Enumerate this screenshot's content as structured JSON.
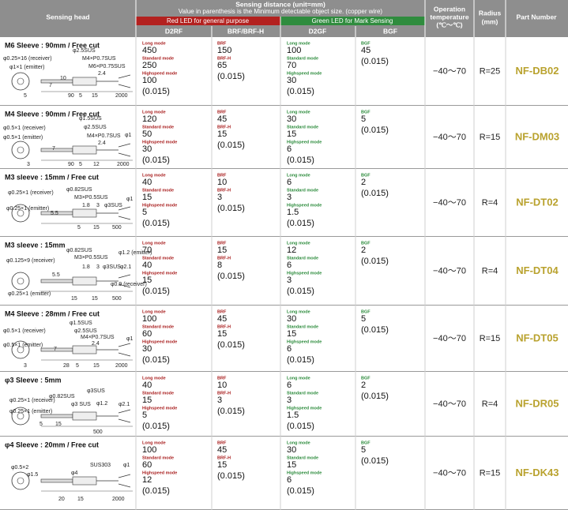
{
  "header": {
    "sensing_head": "Sensing head",
    "sensing_distance": "Sensing distance (unit=mm)",
    "note": "Value in parenthesis is the Minimum detectable object size. (copper wire)",
    "red_led": "Red LED for general purpose",
    "green_led": "Green LED for Mark Sensing",
    "d2rf": "D2RF",
    "brf": "BRF/BRF-H",
    "d2gf": "D2GF",
    "bgf": "BGF",
    "operation_temperature": [
      "Operation",
      "temperature",
      "(℃〜℃)"
    ],
    "radius": [
      "Radius",
      "(mm)"
    ],
    "part_number": "Part Number"
  },
  "rows": [
    {
      "title": "M6 Sleeve : 90mm / Free cut",
      "labels": [
        "φ0.25×16 (receiver)",
        "φ1×1 (emitter)",
        "φ2.5SUS",
        "M4×P0.7SUS",
        "M6×P0.75SUS",
        "2.4",
        "10",
        "7",
        "5",
        "90",
        "5",
        "15",
        "2000"
      ],
      "d2rf": {
        "modes": [
          {
            "label": "Long mode",
            "value": "450"
          },
          {
            "label": "Standard mode",
            "value": "250"
          },
          {
            "label": "Highspeed mode",
            "value": "100"
          }
        ],
        "min": "(0.015)"
      },
      "brf": {
        "modes": [
          {
            "label": "BRF",
            "value": "150"
          },
          {
            "label": "BRF-H",
            "value": "65"
          }
        ],
        "min": "(0.015)"
      },
      "d2gf": {
        "modes": [
          {
            "label": "Long mode",
            "value": "100"
          },
          {
            "label": "Standard mode",
            "value": "70"
          },
          {
            "label": "Highspeed mode",
            "value": "30"
          }
        ],
        "min": "(0.015)"
      },
      "bgf": {
        "modes": [
          {
            "label": "BGF",
            "value": "45"
          }
        ],
        "min": "(0.015)"
      },
      "temperature": "−40〜70",
      "radius": "R=25",
      "part": "NF-DB02"
    },
    {
      "title": "M4 Sleeve : 90mm / Free cut",
      "labels": [
        "φ0.5×1 (receiver)",
        "φ0.5×1 (emitter)",
        "φ1.5SUS",
        "φ2.5SUS",
        "M4×P0.7SUS",
        "2.4",
        "φ1",
        "7",
        "3",
        "90",
        "5",
        "12",
        "2000"
      ],
      "d2rf": {
        "modes": [
          {
            "label": "Long mode",
            "value": "120"
          },
          {
            "label": "Standard mode",
            "value": "50"
          },
          {
            "label": "Highspeed mode",
            "value": "30"
          }
        ],
        "min": "(0.015)"
      },
      "brf": {
        "modes": [
          {
            "label": "BRF",
            "value": "45"
          },
          {
            "label": "BRF-H",
            "value": "15"
          }
        ],
        "min": "(0.015)"
      },
      "d2gf": {
        "modes": [
          {
            "label": "Long mode",
            "value": "30"
          },
          {
            "label": "Standard mode",
            "value": "15"
          },
          {
            "label": "Highspeed mode",
            "value": "6"
          }
        ],
        "min": "(0.015)"
      },
      "bgf": {
        "modes": [
          {
            "label": "BGF",
            "value": "5"
          }
        ],
        "min": "(0.015)"
      },
      "temperature": "−40〜70",
      "radius": "R=15",
      "part": "NF-DM03"
    },
    {
      "title": "M3 sleeve : 15mm / Free cut",
      "labels": [
        "φ0.25×1 (receiver)",
        "φ0.25×1 (emitter)",
        "φ0.82SUS",
        "M3×P0.5SUS",
        "5.5",
        "1.8",
        "3",
        "φ3SUS",
        "φ1",
        "5",
        "15",
        "500"
      ],
      "d2rf": {
        "modes": [
          {
            "label": "Long mode",
            "value": "40"
          },
          {
            "label": "Standard mode",
            "value": "15"
          },
          {
            "label": "Highspeed mode",
            "value": "5"
          }
        ],
        "min": "(0.015)"
      },
      "brf": {
        "modes": [
          {
            "label": "BRF",
            "value": "10"
          },
          {
            "label": "BRF-H",
            "value": "3"
          }
        ],
        "min": "(0.015)"
      },
      "d2gf": {
        "modes": [
          {
            "label": "Long mode",
            "value": "6"
          },
          {
            "label": "Standard mode",
            "value": "3"
          },
          {
            "label": "Highspeed mode",
            "value": "1.5"
          }
        ],
        "min": "(0.015)"
      },
      "bgf": {
        "modes": [
          {
            "label": "BGF",
            "value": "2"
          }
        ],
        "min": "(0.015)"
      },
      "temperature": "−40〜70",
      "radius": "R=4",
      "part": "NF-DT02"
    },
    {
      "title": "M3 sleeve : 15mm",
      "labels": [
        "φ0.125×9 (receiver)",
        "φ0.25×1 (emitter)",
        "φ0.82SUS",
        "M3×P0.5SUS",
        "1.8",
        "3",
        "φ3SUS",
        "φ1.2 (emitter)",
        "φ2.1",
        "5.5",
        "φ0.9 (receiver)",
        "15",
        "15",
        "500"
      ],
      "d2rf": {
        "modes": [
          {
            "label": "Long mode",
            "value": "70"
          },
          {
            "label": "Standard mode",
            "value": "40"
          },
          {
            "label": "Highspeed mode",
            "value": "15"
          }
        ],
        "min": "(0.015)"
      },
      "brf": {
        "modes": [
          {
            "label": "BRF",
            "value": "15"
          },
          {
            "label": "BRF-H",
            "value": "8"
          }
        ],
        "min": "(0.015)"
      },
      "d2gf": {
        "modes": [
          {
            "label": "Long mode",
            "value": "12"
          },
          {
            "label": "Standard mode",
            "value": "6"
          },
          {
            "label": "Highspeed mode",
            "value": "3"
          }
        ],
        "min": "(0.015)"
      },
      "bgf": {
        "modes": [
          {
            "label": "BGF",
            "value": "2"
          }
        ],
        "min": "(0.015)"
      },
      "temperature": "−40〜70",
      "radius": "R=4",
      "part": "NF-DT04"
    },
    {
      "title": "M4 Sleeve : 28mm / Free cut",
      "labels": [
        "φ0.5×1 (receiver)",
        "φ0.5×1 (emitter)",
        "φ1.5SUS",
        "φ2.5SUS",
        "M4×P0.7SUS",
        "2.4",
        "φ1",
        "7",
        "3",
        "28",
        "5",
        "15",
        "2000"
      ],
      "d2rf": {
        "modes": [
          {
            "label": "Long mode",
            "value": "100"
          },
          {
            "label": "Standard mode",
            "value": "60"
          },
          {
            "label": "Highspeed mode",
            "value": "30"
          }
        ],
        "min": "(0.015)"
      },
      "brf": {
        "modes": [
          {
            "label": "BRF",
            "value": "45"
          },
          {
            "label": "BRF-H",
            "value": "15"
          }
        ],
        "min": "(0.015)"
      },
      "d2gf": {
        "modes": [
          {
            "label": "Long mode",
            "value": "30"
          },
          {
            "label": "Standard mode",
            "value": "15"
          },
          {
            "label": "Highspeed mode",
            "value": "6"
          }
        ],
        "min": "(0.015)"
      },
      "bgf": {
        "modes": [
          {
            "label": "BGF",
            "value": "5"
          }
        ],
        "min": "(0.015)"
      },
      "temperature": "−40〜70",
      "radius": "R=15",
      "part": "NF-DT05"
    },
    {
      "title": "φ3 Sleeve : 5mm",
      "labels": [
        "φ0.25×1 (receiver)",
        "φ0.25×1 (emitter)",
        "φ0.82SUS",
        "φ3SUS",
        "φ3 SUS",
        "φ1.2",
        "φ2.1",
        "5",
        "15",
        "500"
      ],
      "d2rf": {
        "modes": [
          {
            "label": "Long mode",
            "value": "40"
          },
          {
            "label": "Standard mode",
            "value": "15"
          },
          {
            "label": "Highspeed mode",
            "value": "5"
          }
        ],
        "min": "(0.015)"
      },
      "brf": {
        "modes": [
          {
            "label": "BRF",
            "value": "10"
          },
          {
            "label": "BRF-H",
            "value": "3"
          }
        ],
        "min": "(0.015)"
      },
      "d2gf": {
        "modes": [
          {
            "label": "Long mode",
            "value": "6"
          },
          {
            "label": "Standard mode",
            "value": "3"
          },
          {
            "label": "Highspeed mode",
            "value": "1.5"
          }
        ],
        "min": "(0.015)"
      },
      "bgf": {
        "modes": [
          {
            "label": "BGF",
            "value": "2"
          }
        ],
        "min": "(0.015)"
      },
      "temperature": "−40〜70",
      "radius": "R=4",
      "part": "NF-DR05"
    },
    {
      "title": "φ4 Sleeve : 20mm / Free cut",
      "labels": [
        "φ0.5×2",
        "φ1.5",
        "φ4",
        "SUS303",
        "φ1",
        "20",
        "15",
        "2000"
      ],
      "d2rf": {
        "modes": [
          {
            "label": "Long mode",
            "value": "100"
          },
          {
            "label": "Standard mode",
            "value": "60"
          },
          {
            "label": "Highspeed mode",
            "value": "12"
          }
        ],
        "min": "(0.015)"
      },
      "brf": {
        "modes": [
          {
            "label": "BRF",
            "value": "45"
          },
          {
            "label": "BRF-H",
            "value": "15"
          }
        ],
        "min": "(0.015)"
      },
      "d2gf": {
        "modes": [
          {
            "label": "Long mode",
            "value": "30"
          },
          {
            "label": "Standard mode",
            "value": "15"
          },
          {
            "label": "Highspeed mode",
            "value": "6"
          }
        ],
        "min": "(0.015)"
      },
      "bgf": {
        "modes": [
          {
            "label": "BGF",
            "value": "5"
          }
        ],
        "min": "(0.015)"
      },
      "temperature": "−40〜70",
      "radius": "R=15",
      "part": "NF-DK43"
    }
  ]
}
